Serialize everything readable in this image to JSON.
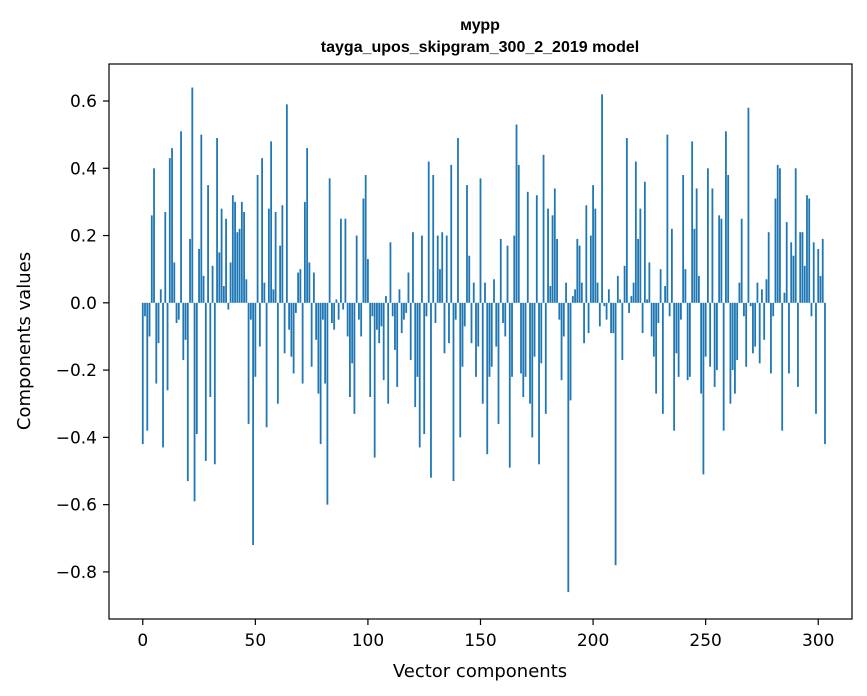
{
  "chart_data": {
    "type": "bar",
    "title": "мурр",
    "subtitle": "tayga_upos_skipgram_300_2_2019 model",
    "xlabel": "Vector components",
    "ylabel": "Components values",
    "xlim": [
      -15,
      315
    ],
    "ylim": [
      -0.94,
      0.71
    ],
    "xticks": [
      0,
      50,
      100,
      150,
      200,
      250,
      300
    ],
    "xtick_labels": [
      "0",
      "50",
      "100",
      "150",
      "200",
      "250",
      "300"
    ],
    "yticks": [
      -0.8,
      -0.6,
      -0.4,
      -0.2,
      0.0,
      0.2,
      0.4,
      0.6
    ],
    "ytick_labels": [
      "−0.8",
      "−0.6",
      "−0.4",
      "−0.2",
      "0.0",
      "0.2",
      "0.4",
      "0.6"
    ],
    "bar_color": "#1f77b4",
    "grid": false,
    "values": [
      -0.42,
      -0.04,
      -0.38,
      -0.1,
      0.26,
      0.4,
      -0.24,
      -0.12,
      0.04,
      -0.43,
      0.27,
      -0.26,
      0.43,
      0.46,
      0.12,
      -0.06,
      -0.05,
      0.51,
      -0.17,
      -0.11,
      -0.53,
      0.19,
      0.64,
      -0.59,
      -0.39,
      0.16,
      0.5,
      0.08,
      -0.47,
      0.35,
      -0.28,
      0.11,
      -0.48,
      0.49,
      0.15,
      0.28,
      0.05,
      0.25,
      -0.02,
      0.12,
      0.32,
      0.3,
      0.21,
      0.22,
      0.3,
      0.27,
      0.07,
      -0.36,
      -0.05,
      -0.72,
      -0.22,
      0.38,
      -0.13,
      0.43,
      0.06,
      -0.37,
      0.28,
      0.48,
      0.04,
      0.27,
      -0.3,
      0.17,
      0.29,
      -0.15,
      0.59,
      -0.08,
      -0.16,
      -0.21,
      -0.03,
      0.09,
      0.1,
      -0.24,
      0.3,
      0.46,
      0.12,
      -0.19,
      0.09,
      -0.11,
      -0.27,
      -0.42,
      -0.05,
      -0.24,
      -0.6,
      0.37,
      -0.06,
      -0.08,
      0.01,
      -0.05,
      0.25,
      -0.02,
      0.25,
      -0.1,
      -0.28,
      -0.18,
      -0.33,
      0.2,
      -0.05,
      -0.1,
      0.31,
      0.38,
      0.13,
      -0.28,
      -0.04,
      -0.46,
      -0.08,
      -0.12,
      -0.07,
      -0.23,
      0.02,
      -0.3,
      0.18,
      -0.04,
      -0.14,
      -0.25,
      0.04,
      -0.09,
      -0.05,
      -0.03,
      0.09,
      -0.17,
      0.21,
      -0.31,
      -0.22,
      -0.43,
      0.2,
      -0.39,
      -0.04,
      0.42,
      -0.52,
      0.38,
      -0.06,
      0.2,
      0.1,
      0.21,
      -0.15,
      0.2,
      -0.12,
      0.41,
      -0.53,
      -0.05,
      0.49,
      -0.4,
      -0.19,
      -0.07,
      0.35,
      0.14,
      -0.12,
      0.06,
      -0.22,
      -0.13,
      0.37,
      -0.3,
      0.06,
      -0.45,
      -0.22,
      -0.19,
      0.07,
      -0.13,
      -0.36,
      0.19,
      -0.06,
      -0.1,
      0.17,
      -0.49,
      -0.22,
      0.2,
      0.53,
      0.41,
      -0.21,
      -0.28,
      -0.22,
      0.33,
      -0.3,
      -0.4,
      -0.16,
      0.32,
      -0.48,
      -0.18,
      0.44,
      -0.33,
      0.28,
      0.05,
      0.26,
      0.34,
      0.19,
      -0.05,
      -0.23,
      -0.1,
      0.06,
      -0.86,
      -0.29,
      0.02,
      0.04,
      0.19,
      0.17,
      0.06,
      -0.12,
      0.29,
      -0.09,
      0.2,
      0.35,
      0.28,
      0.06,
      -0.07,
      0.62,
      -0.01,
      -0.05,
      0.04,
      -0.09,
      -0.09,
      -0.78,
      0.08,
      0.01,
      -0.17,
      0.11,
      0.49,
      -0.03,
      0.02,
      0.06,
      0.42,
      0.19,
      0.28,
      -0.09,
      0.36,
      0.01,
      0.12,
      -0.1,
      -0.16,
      -0.27,
      -0.06,
      0.1,
      -0.33,
      0.05,
      0.5,
      -0.04,
      0.22,
      -0.38,
      -0.15,
      -0.22,
      -0.05,
      0.38,
      0.1,
      -0.23,
      -0.22,
      0.48,
      0.22,
      0.34,
      0.08,
      -0.27,
      -0.51,
      -0.16,
      0.4,
      -0.19,
      0.34,
      -0.25,
      -0.2,
      0.26,
      0.25,
      -0.38,
      0.51,
      0.38,
      -0.3,
      -0.2,
      -0.27,
      -0.17,
      0.06,
      0.25,
      -0.04,
      -0.19,
      0.58,
      -0.01,
      -0.15,
      -0.13,
      0.06,
      -0.18,
      0.04,
      -0.11,
      0.07,
      0.21,
      -0.21,
      -0.04,
      0.31,
      0.41,
      0.4,
      -0.38,
      0.03,
      0.24,
      -0.21,
      0.18,
      0.14,
      0.4,
      -0.25,
      0.21,
      0.21,
      0.11,
      0.32,
      0.31,
      -0.04,
      0.18,
      -0.33,
      0.16,
      0.08,
      0.19,
      -0.42
    ]
  }
}
